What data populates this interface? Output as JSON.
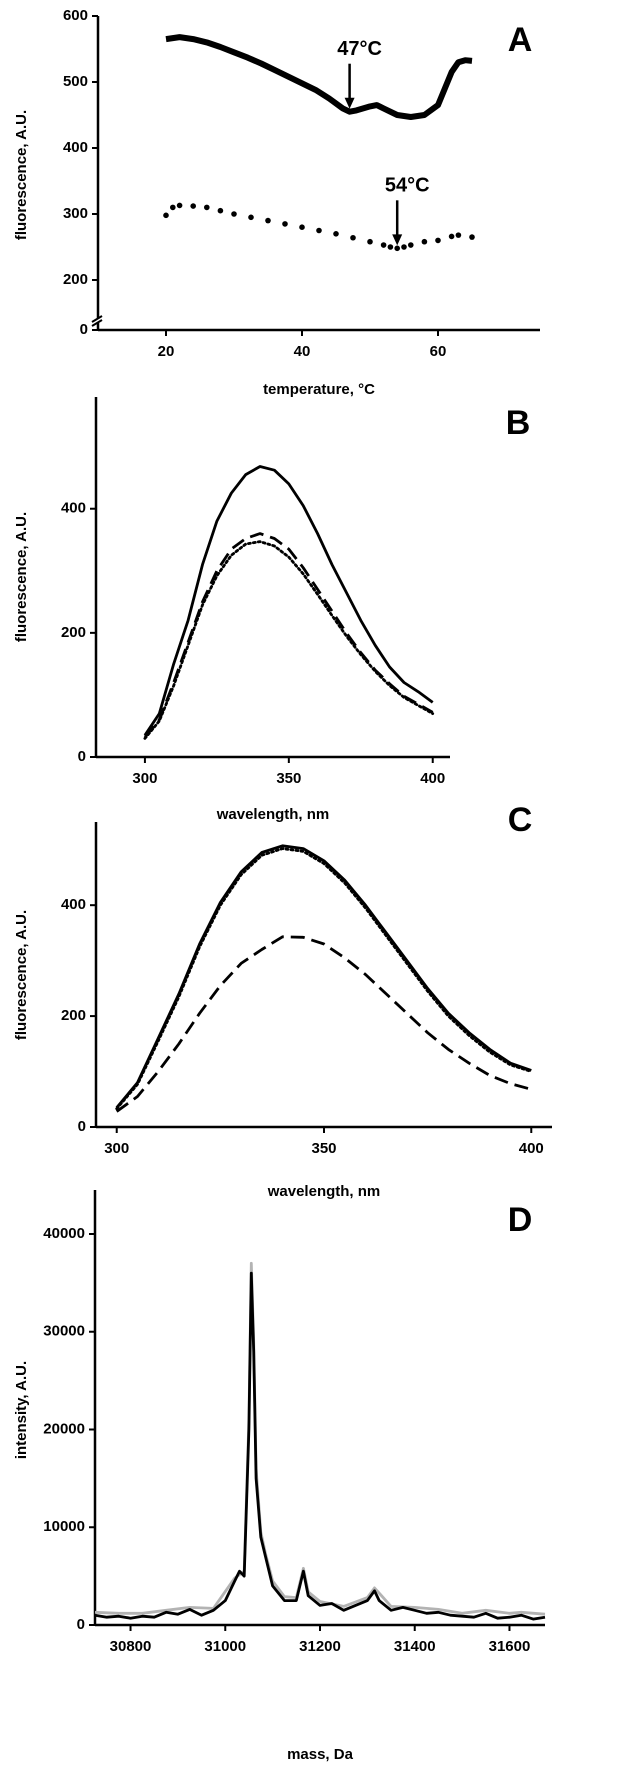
{
  "chart_data": [
    {
      "type": "line",
      "panel": "A",
      "xlabel": "temperature, °C",
      "ylabel": "fluorescence, A.U.",
      "xlim": [
        10,
        75
      ],
      "ylim": [
        0,
        600
      ],
      "ybreak": [
        0,
        150
      ],
      "xticks": [
        20,
        40,
        60
      ],
      "yticks": [
        0,
        200,
        300,
        400,
        500,
        600
      ],
      "series": [
        {
          "color": "#000000",
          "style": "thick",
          "x": [
            20,
            22,
            24,
            26,
            28,
            30,
            32,
            34,
            36,
            38,
            40,
            42,
            44,
            46,
            47,
            48,
            50,
            51,
            52,
            54,
            56,
            58,
            60,
            61,
            62,
            63,
            64,
            65
          ],
          "values": [
            565,
            568,
            565,
            560,
            553,
            545,
            537,
            528,
            518,
            508,
            498,
            488,
            475,
            460,
            455,
            457,
            463,
            465,
            460,
            450,
            447,
            450,
            465,
            490,
            515,
            530,
            533,
            532
          ]
        },
        {
          "color": "#000000",
          "style": "dots",
          "x": [
            20,
            21,
            22,
            24,
            26,
            28,
            30,
            32.5,
            35,
            37.5,
            40,
            42.5,
            45,
            47.5,
            50,
            52,
            53,
            54,
            55,
            56,
            58,
            60,
            62,
            63,
            65
          ],
          "values": [
            298,
            310,
            313,
            312,
            310,
            305,
            300,
            295,
            290,
            285,
            280,
            275,
            270,
            264,
            258,
            253,
            250,
            248,
            250,
            253,
            258,
            260,
            266,
            268,
            265
          ]
        }
      ],
      "annotations": [
        {
          "text": "47°C",
          "x": 47,
          "y": 455
        },
        {
          "text": "54°C",
          "x": 54,
          "y": 248
        }
      ]
    },
    {
      "type": "line",
      "panel": "B",
      "xlabel": "wavelength, nm",
      "ylabel": "fluorescence, A.U.",
      "xlim": [
        283,
        406
      ],
      "ylim": [
        0,
        580
      ],
      "xticks": [
        300,
        350,
        400
      ],
      "yticks": [
        0,
        200,
        400
      ],
      "x": [
        300,
        305,
        310,
        315,
        320,
        325,
        330,
        335,
        340,
        345,
        350,
        355,
        360,
        365,
        370,
        375,
        380,
        385,
        390,
        395,
        400
      ],
      "series": [
        {
          "color": "#000000",
          "style": "solid",
          "values": [
            35,
            70,
            150,
            220,
            310,
            380,
            425,
            455,
            468,
            462,
            440,
            405,
            360,
            310,
            265,
            220,
            180,
            145,
            120,
            105,
            88
          ]
        },
        {
          "color": "#000000",
          "style": "dashed",
          "values": [
            32,
            60,
            120,
            185,
            250,
            300,
            335,
            352,
            360,
            352,
            335,
            305,
            270,
            235,
            200,
            168,
            140,
            118,
            98,
            85,
            72
          ]
        },
        {
          "color": "#000000",
          "style": "dotted",
          "values": [
            30,
            58,
            115,
            180,
            245,
            292,
            325,
            343,
            347,
            340,
            322,
            295,
            262,
            228,
            195,
            165,
            138,
            115,
            96,
            83,
            70
          ]
        }
      ]
    },
    {
      "type": "line",
      "panel": "C",
      "xlabel": "wavelength, nm",
      "ylabel": "fluorescence, A.U.",
      "xlim": [
        295,
        405
      ],
      "ylim": [
        0,
        550
      ],
      "xticks": [
        300,
        350,
        400
      ],
      "yticks": [
        0,
        200,
        400
      ],
      "x": [
        300,
        305,
        310,
        315,
        320,
        325,
        330,
        335,
        340,
        345,
        350,
        355,
        360,
        365,
        370,
        375,
        380,
        385,
        390,
        395,
        400
      ],
      "series": [
        {
          "color": "#000000",
          "style": "solid",
          "values": [
            35,
            80,
            160,
            240,
            330,
            405,
            460,
            495,
            507,
            502,
            480,
            445,
            400,
            350,
            300,
            250,
            205,
            170,
            140,
            115,
            102
          ]
        },
        {
          "color": "#000000",
          "style": "dotted",
          "values": [
            33,
            77,
            155,
            235,
            325,
            400,
            455,
            490,
            502,
            497,
            475,
            440,
            395,
            345,
            295,
            245,
            200,
            165,
            135,
            112,
            100
          ]
        },
        {
          "color": "#000000",
          "style": "dashed",
          "values": [
            28,
            55,
            100,
            150,
            205,
            255,
            295,
            320,
            343,
            342,
            330,
            305,
            275,
            240,
            205,
            170,
            140,
            115,
            93,
            78,
            68
          ]
        }
      ]
    },
    {
      "type": "line",
      "panel": "D",
      "xlabel": "mass, Da",
      "ylabel": "intensity, A.U.",
      "xlim": [
        30725,
        31675
      ],
      "ylim": [
        0,
        44500
      ],
      "xticks": [
        30800,
        31000,
        31200,
        31400,
        31600
      ],
      "yticks": [
        0,
        10000,
        20000,
        30000,
        40000
      ],
      "series": [
        {
          "color": "#b3b3b3",
          "style": "solid",
          "x": [
            30725,
            30775,
            30825,
            30875,
            30925,
            30975,
            31020,
            31040,
            31050,
            31055,
            31060,
            31065,
            31075,
            31085,
            31100,
            31125,
            31150,
            31165,
            31175,
            31200,
            31250,
            31300,
            31315,
            31350,
            31400,
            31450,
            31500,
            31550,
            31600,
            31625,
            31675
          ],
          "values": [
            1300,
            1200,
            1200,
            1500,
            1800,
            1700,
            4800,
            5500,
            21000,
            37000,
            29000,
            16000,
            9500,
            7300,
            4500,
            2900,
            2800,
            5800,
            3400,
            2400,
            1900,
            2800,
            3800,
            1900,
            1800,
            1600,
            1200,
            1500,
            1200,
            1300,
            1100
          ]
        },
        {
          "color": "#000000",
          "style": "solid",
          "x": [
            30725,
            30750,
            30775,
            30800,
            30825,
            30850,
            30875,
            30900,
            30925,
            30950,
            30975,
            31000,
            31020,
            31030,
            31040,
            31050,
            31055,
            31060,
            31065,
            31075,
            31085,
            31100,
            31125,
            31150,
            31165,
            31175,
            31200,
            31225,
            31250,
            31275,
            31300,
            31315,
            31325,
            31350,
            31375,
            31400,
            31425,
            31450,
            31475,
            31500,
            31525,
            31550,
            31575,
            31600,
            31625,
            31650,
            31675
          ],
          "values": [
            1000,
            800,
            900,
            700,
            900,
            800,
            1300,
            1100,
            1600,
            1000,
            1500,
            2500,
            4500,
            5500,
            5000,
            20000,
            36000,
            28000,
            15000,
            9000,
            7000,
            4000,
            2500,
            2500,
            5500,
            3000,
            2000,
            2200,
            1500,
            2000,
            2500,
            3500,
            2500,
            1500,
            1800,
            1500,
            1200,
            1300,
            1000,
            900,
            800,
            1200,
            700,
            800,
            1000,
            600,
            800
          ]
        }
      ]
    }
  ]
}
